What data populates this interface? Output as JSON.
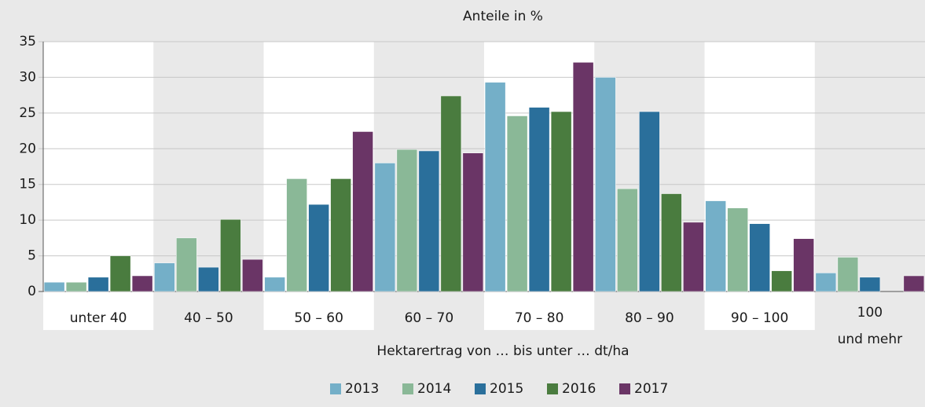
{
  "chart_data": {
    "type": "bar",
    "title": "Anteile in %",
    "x_label": "Hektarertrag von … bis unter … dt/ha",
    "categories": [
      "unter 40",
      "40 – 50",
      "50 – 60",
      "60 – 70",
      "70 – 80",
      "80 – 90",
      "90 – 100",
      "100\nund mehr"
    ],
    "series": [
      {
        "name": "2013",
        "color": "#74afc8",
        "values": [
          1.3,
          4.0,
          2.0,
          18.0,
          29.3,
          30.0,
          12.7,
          2.6
        ]
      },
      {
        "name": "2014",
        "color": "#8ab897",
        "values": [
          1.3,
          7.5,
          15.8,
          19.9,
          24.6,
          14.4,
          11.7,
          4.8
        ]
      },
      {
        "name": "2015",
        "color": "#2a6f9b",
        "values": [
          2.0,
          3.4,
          12.2,
          19.7,
          25.8,
          25.2,
          9.5,
          2.0
        ]
      },
      {
        "name": "2016",
        "color": "#4a7c3f",
        "values": [
          5.0,
          10.1,
          15.8,
          27.4,
          25.2,
          13.7,
          2.9,
          null
        ]
      },
      {
        "name": "2017",
        "color": "#6a3566",
        "values": [
          2.2,
          4.5,
          22.4,
          19.4,
          32.1,
          9.7,
          7.4,
          2.2
        ]
      }
    ],
    "ylim": [
      0,
      35
    ],
    "yticks": [
      0,
      5,
      10,
      15,
      20,
      25,
      30,
      35
    ],
    "grid": true,
    "legend": "bottom"
  }
}
